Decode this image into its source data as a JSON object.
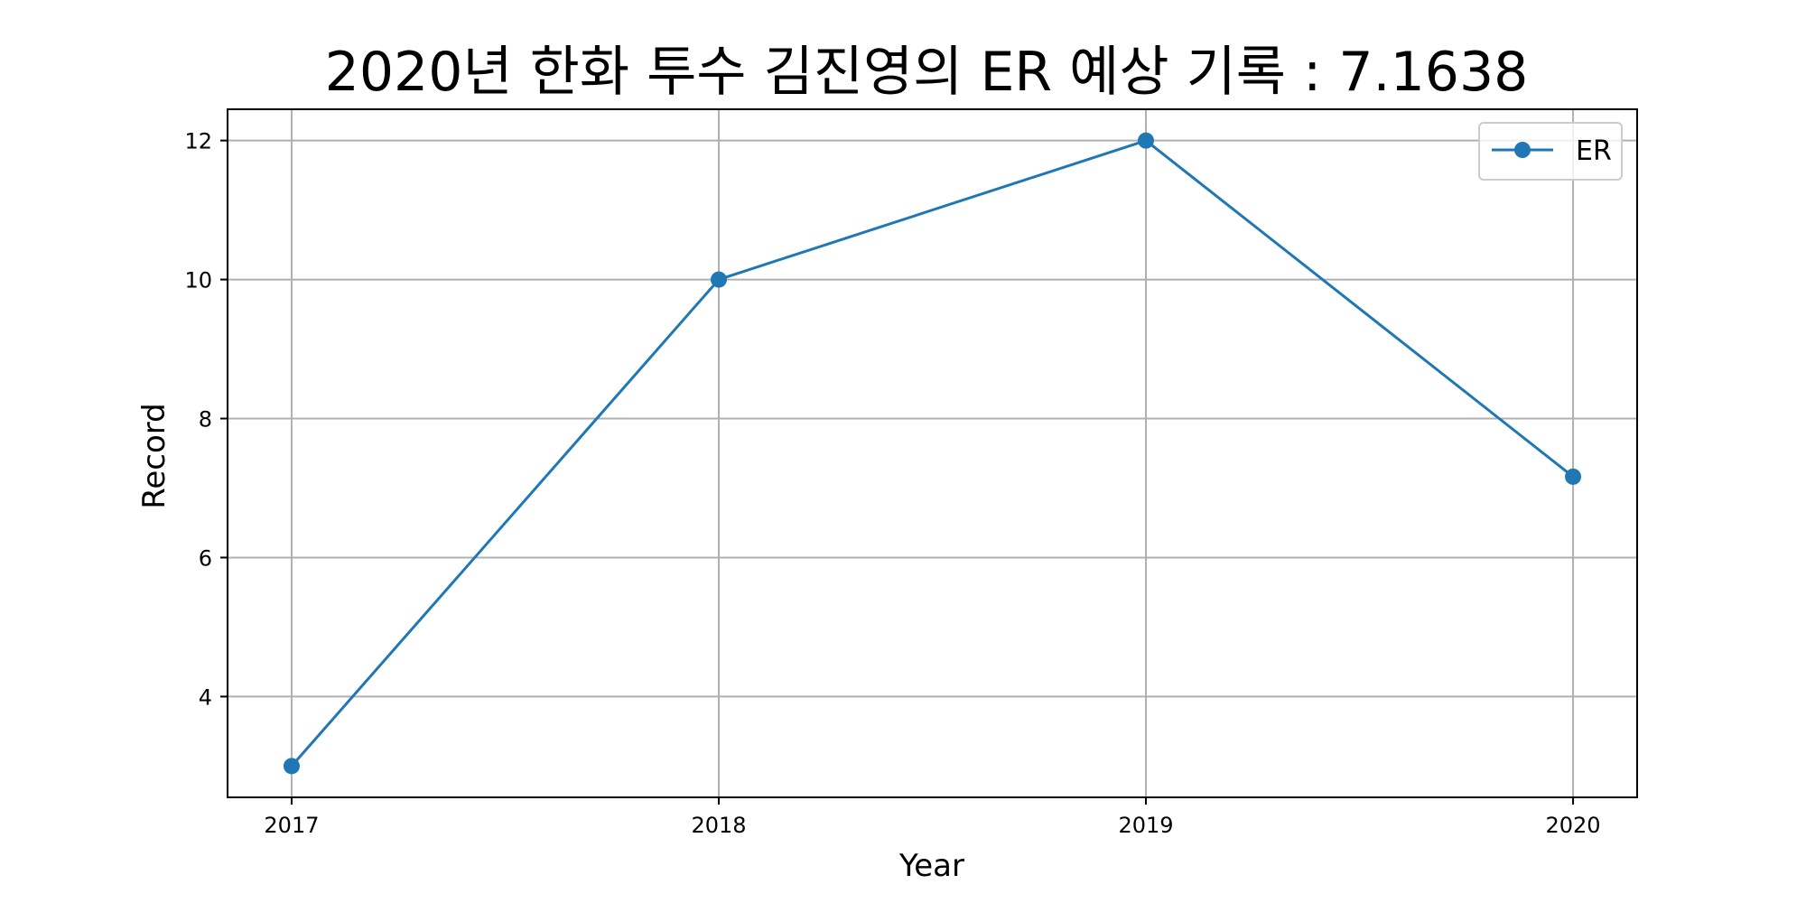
{
  "chart_data": {
    "type": "line",
    "title": "2020년 한화 투수 김진영의 ER 예상 기록 : 7.1638",
    "xlabel": "Year",
    "ylabel": "Record",
    "x": [
      2017,
      2018,
      2019,
      2020
    ],
    "x_tick_labels": [
      "2017",
      "2018",
      "2019",
      "2020"
    ],
    "y_ticks": [
      4,
      6,
      8,
      10,
      12
    ],
    "y_tick_labels": [
      "4",
      "6",
      "8",
      "10",
      "12"
    ],
    "xlim": [
      2016.85,
      2020.15
    ],
    "ylim": [
      2.55,
      12.45
    ],
    "grid": true,
    "legend": "top-right",
    "series": [
      {
        "name": "ER",
        "values": [
          3,
          10,
          12,
          7.1638
        ],
        "color": "#1f77b4",
        "marker": "circle"
      }
    ]
  }
}
